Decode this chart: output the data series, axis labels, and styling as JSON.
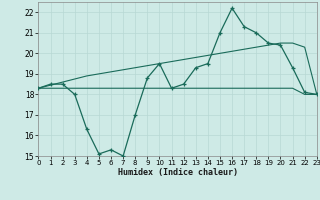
{
  "x": [
    0,
    1,
    2,
    3,
    4,
    5,
    6,
    7,
    8,
    9,
    10,
    11,
    12,
    13,
    14,
    15,
    16,
    17,
    18,
    19,
    20,
    21,
    22,
    23
  ],
  "y_zigzag": [
    18.3,
    18.5,
    18.5,
    18.0,
    16.3,
    15.1,
    15.3,
    15.0,
    17.0,
    18.8,
    19.5,
    18.3,
    18.5,
    19.3,
    19.5,
    21.0,
    22.2,
    21.3,
    21.0,
    20.5,
    20.4,
    19.3,
    18.1,
    18.0
  ],
  "y_line_flat": [
    18.3,
    18.3,
    18.3,
    18.3,
    18.3,
    18.3,
    18.3,
    18.3,
    18.3,
    18.3,
    18.3,
    18.3,
    18.3,
    18.3,
    18.3,
    18.3,
    18.3,
    18.3,
    18.3,
    18.3,
    18.3,
    18.3,
    18.0,
    18.0
  ],
  "y_line_rising": [
    18.3,
    18.45,
    18.6,
    18.75,
    18.9,
    19.0,
    19.1,
    19.2,
    19.3,
    19.4,
    19.5,
    19.6,
    19.7,
    19.8,
    19.9,
    20.0,
    20.1,
    20.2,
    20.3,
    20.4,
    20.5,
    20.5,
    20.3,
    18.0
  ],
  "xlabel": "Humidex (Indice chaleur)",
  "xlim": [
    0,
    23
  ],
  "ylim": [
    15,
    22.5
  ],
  "yticks": [
    15,
    16,
    17,
    18,
    19,
    20,
    21,
    22
  ],
  "xticks": [
    0,
    1,
    2,
    3,
    4,
    5,
    6,
    7,
    8,
    9,
    10,
    11,
    12,
    13,
    14,
    15,
    16,
    17,
    18,
    19,
    20,
    21,
    22,
    23
  ],
  "line_color": "#1a6b5a",
  "bg_color": "#ceeae6",
  "grid_color": "#b8d8d4"
}
